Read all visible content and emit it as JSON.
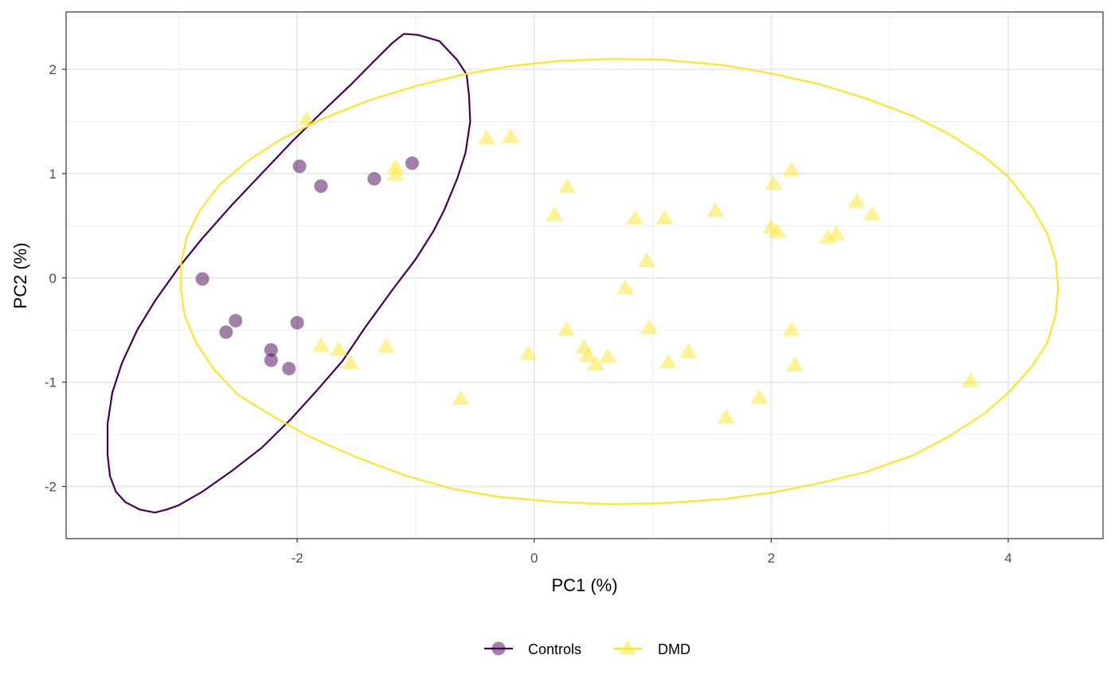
{
  "chart_data": {
    "type": "scatter",
    "title": "",
    "xlabel": "PC1 (%)",
    "ylabel": "PC2 (%)",
    "xlim": [
      -3.95,
      4.8
    ],
    "ylim": [
      -2.5,
      2.55
    ],
    "x_ticks": [
      -2,
      0,
      2,
      4
    ],
    "y_ticks": [
      -2,
      -1,
      0,
      1,
      2
    ],
    "x_tick_labels": [
      "-2",
      "0",
      "2",
      "4"
    ],
    "y_tick_labels": [
      "-2",
      "-1",
      "0",
      "1",
      "2"
    ],
    "grid": true,
    "legend_position": "bottom",
    "series": [
      {
        "name": "Controls",
        "color": "#440154",
        "marker": "circle",
        "points": [
          [
            -2.8,
            -0.01
          ],
          [
            -1.98,
            1.07
          ],
          [
            -1.8,
            0.88
          ],
          [
            -1.35,
            0.95
          ],
          [
            -1.03,
            1.1
          ],
          [
            -2.52,
            -0.41
          ],
          [
            -2.6,
            -0.52
          ],
          [
            -2.0,
            -0.43
          ],
          [
            -2.22,
            -0.69
          ],
          [
            -2.22,
            -0.79
          ],
          [
            -2.07,
            -0.87
          ]
        ],
        "ellipse": [
          [
            -1.1,
            2.34
          ],
          [
            -0.98,
            2.33
          ],
          [
            -0.8,
            2.27
          ],
          [
            -0.65,
            2.09
          ],
          [
            -0.57,
            1.95
          ],
          [
            -0.55,
            1.75
          ],
          [
            -0.54,
            1.5
          ],
          [
            -0.58,
            1.2
          ],
          [
            -0.65,
            0.95
          ],
          [
            -0.76,
            0.65
          ],
          [
            -0.85,
            0.45
          ],
          [
            -1.0,
            0.18
          ],
          [
            -1.2,
            -0.12
          ],
          [
            -1.43,
            -0.48
          ],
          [
            -1.62,
            -0.8
          ],
          [
            -1.85,
            -1.1
          ],
          [
            -2.05,
            -1.35
          ],
          [
            -2.3,
            -1.63
          ],
          [
            -2.55,
            -1.85
          ],
          [
            -2.8,
            -2.05
          ],
          [
            -3.0,
            -2.18
          ],
          [
            -3.1,
            -2.22
          ],
          [
            -3.2,
            -2.25
          ],
          [
            -3.33,
            -2.22
          ],
          [
            -3.45,
            -2.15
          ],
          [
            -3.53,
            -2.05
          ],
          [
            -3.58,
            -1.9
          ],
          [
            -3.6,
            -1.7
          ],
          [
            -3.6,
            -1.4
          ],
          [
            -3.56,
            -1.1
          ],
          [
            -3.48,
            -0.82
          ],
          [
            -3.35,
            -0.5
          ],
          [
            -3.2,
            -0.22
          ],
          [
            -3.0,
            0.1
          ],
          [
            -2.8,
            0.38
          ],
          [
            -2.55,
            0.7
          ],
          [
            -2.3,
            1.0
          ],
          [
            -2.05,
            1.3
          ],
          [
            -1.8,
            1.58
          ],
          [
            -1.55,
            1.85
          ],
          [
            -1.35,
            2.08
          ],
          [
            -1.2,
            2.25
          ],
          [
            -1.1,
            2.34
          ]
        ]
      },
      {
        "name": "DMD",
        "color": "#FDE725",
        "marker": "triangle",
        "points": [
          [
            -1.92,
            1.52
          ],
          [
            -1.17,
            1.06
          ],
          [
            -1.17,
            0.99
          ],
          [
            -0.4,
            1.34
          ],
          [
            -0.2,
            1.35
          ],
          [
            0.28,
            0.87
          ],
          [
            0.17,
            0.6
          ],
          [
            0.85,
            0.57
          ],
          [
            1.1,
            0.57
          ],
          [
            1.53,
            0.64
          ],
          [
            0.95,
            0.16
          ],
          [
            0.77,
            -0.1
          ],
          [
            2.02,
            0.9
          ],
          [
            2.17,
            1.03
          ],
          [
            2.0,
            0.48
          ],
          [
            2.05,
            0.44
          ],
          [
            2.48,
            0.39
          ],
          [
            2.55,
            0.42
          ],
          [
            2.72,
            0.73
          ],
          [
            2.85,
            0.61
          ],
          [
            -1.8,
            -0.65
          ],
          [
            -1.65,
            -0.69
          ],
          [
            -1.55,
            -0.82
          ],
          [
            -1.25,
            -0.66
          ],
          [
            -0.05,
            -0.73
          ],
          [
            -0.62,
            -1.16
          ],
          [
            0.27,
            -0.5
          ],
          [
            0.42,
            -0.67
          ],
          [
            0.45,
            -0.75
          ],
          [
            0.52,
            -0.83
          ],
          [
            0.62,
            -0.76
          ],
          [
            0.97,
            -0.48
          ],
          [
            1.13,
            -0.81
          ],
          [
            1.3,
            -0.71
          ],
          [
            1.62,
            -1.34
          ],
          [
            1.9,
            -1.15
          ],
          [
            2.17,
            -0.5
          ],
          [
            2.2,
            -0.84
          ],
          [
            3.68,
            -0.99
          ]
        ],
        "ellipse": [
          [
            0.65,
            2.1
          ],
          [
            1.1,
            2.09
          ],
          [
            1.6,
            2.04
          ],
          [
            2.0,
            1.96
          ],
          [
            2.4,
            1.86
          ],
          [
            2.8,
            1.72
          ],
          [
            3.2,
            1.55
          ],
          [
            3.5,
            1.38
          ],
          [
            3.8,
            1.16
          ],
          [
            4.0,
            0.97
          ],
          [
            4.2,
            0.68
          ],
          [
            4.33,
            0.42
          ],
          [
            4.4,
            0.17
          ],
          [
            4.42,
            -0.1
          ],
          [
            4.4,
            -0.35
          ],
          [
            4.33,
            -0.62
          ],
          [
            4.2,
            -0.85
          ],
          [
            4.0,
            -1.1
          ],
          [
            3.8,
            -1.3
          ],
          [
            3.5,
            -1.52
          ],
          [
            3.2,
            -1.7
          ],
          [
            2.8,
            -1.86
          ],
          [
            2.4,
            -1.97
          ],
          [
            2.0,
            -2.06
          ],
          [
            1.6,
            -2.12
          ],
          [
            1.1,
            -2.16
          ],
          [
            0.65,
            -2.17
          ],
          [
            0.2,
            -2.15
          ],
          [
            -0.3,
            -2.1
          ],
          [
            -0.7,
            -2.02
          ],
          [
            -1.1,
            -1.89
          ],
          [
            -1.5,
            -1.72
          ],
          [
            -1.9,
            -1.52
          ],
          [
            -2.2,
            -1.33
          ],
          [
            -2.5,
            -1.12
          ],
          [
            -2.7,
            -0.88
          ],
          [
            -2.85,
            -0.63
          ],
          [
            -2.95,
            -0.36
          ],
          [
            -2.98,
            -0.12
          ],
          [
            -2.98,
            0.14
          ],
          [
            -2.93,
            0.4
          ],
          [
            -2.82,
            0.65
          ],
          [
            -2.65,
            0.9
          ],
          [
            -2.42,
            1.12
          ],
          [
            -2.15,
            1.32
          ],
          [
            -1.8,
            1.52
          ],
          [
            -1.4,
            1.7
          ],
          [
            -1.0,
            1.84
          ],
          [
            -0.6,
            1.95
          ],
          [
            -0.2,
            2.03
          ],
          [
            0.2,
            2.08
          ],
          [
            0.65,
            2.1
          ]
        ]
      }
    ]
  },
  "legend": {
    "items": [
      {
        "label": "Controls",
        "color": "#440154",
        "marker": "circle"
      },
      {
        "label": "DMD",
        "color": "#FDE725",
        "marker": "triangle"
      }
    ]
  }
}
